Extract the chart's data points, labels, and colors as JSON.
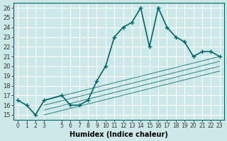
{
  "xlabel": "Humidex (Indice chaleur)",
  "ylabel": "",
  "background_color": "#cce8e8",
  "grid_color": "#ffffff",
  "line_color": "#006666",
  "xlim": [
    -0.5,
    23.5
  ],
  "ylim": [
    14.5,
    26.5
  ],
  "xticks": [
    0,
    1,
    2,
    3,
    5,
    6,
    7,
    8,
    9,
    10,
    11,
    12,
    13,
    14,
    15,
    16,
    17,
    18,
    19,
    20,
    21,
    22,
    23
  ],
  "yticks": [
    15,
    16,
    17,
    18,
    19,
    20,
    21,
    22,
    23,
    24,
    25,
    26
  ],
  "main_line": {
    "x": [
      0,
      1,
      2,
      3,
      5,
      6,
      7,
      8,
      9,
      10,
      11,
      12,
      13,
      14,
      15,
      16,
      17,
      18,
      19,
      20,
      21,
      22,
      23
    ],
    "y": [
      16.5,
      16,
      15,
      16.5,
      17,
      16,
      16,
      16.5,
      18.5,
      20,
      23,
      24,
      24.5,
      26,
      22,
      26,
      24,
      23,
      22.5,
      21,
      21.5,
      21.5,
      21
    ]
  },
  "linear_lines": [
    {
      "x": [
        3,
        23
      ],
      "y": [
        16.5,
        21.0
      ]
    },
    {
      "x": [
        3,
        23
      ],
      "y": [
        16.0,
        20.5
      ]
    },
    {
      "x": [
        3,
        23
      ],
      "y": [
        15.5,
        20.0
      ]
    },
    {
      "x": [
        3,
        23
      ],
      "y": [
        15.0,
        19.5
      ]
    }
  ]
}
